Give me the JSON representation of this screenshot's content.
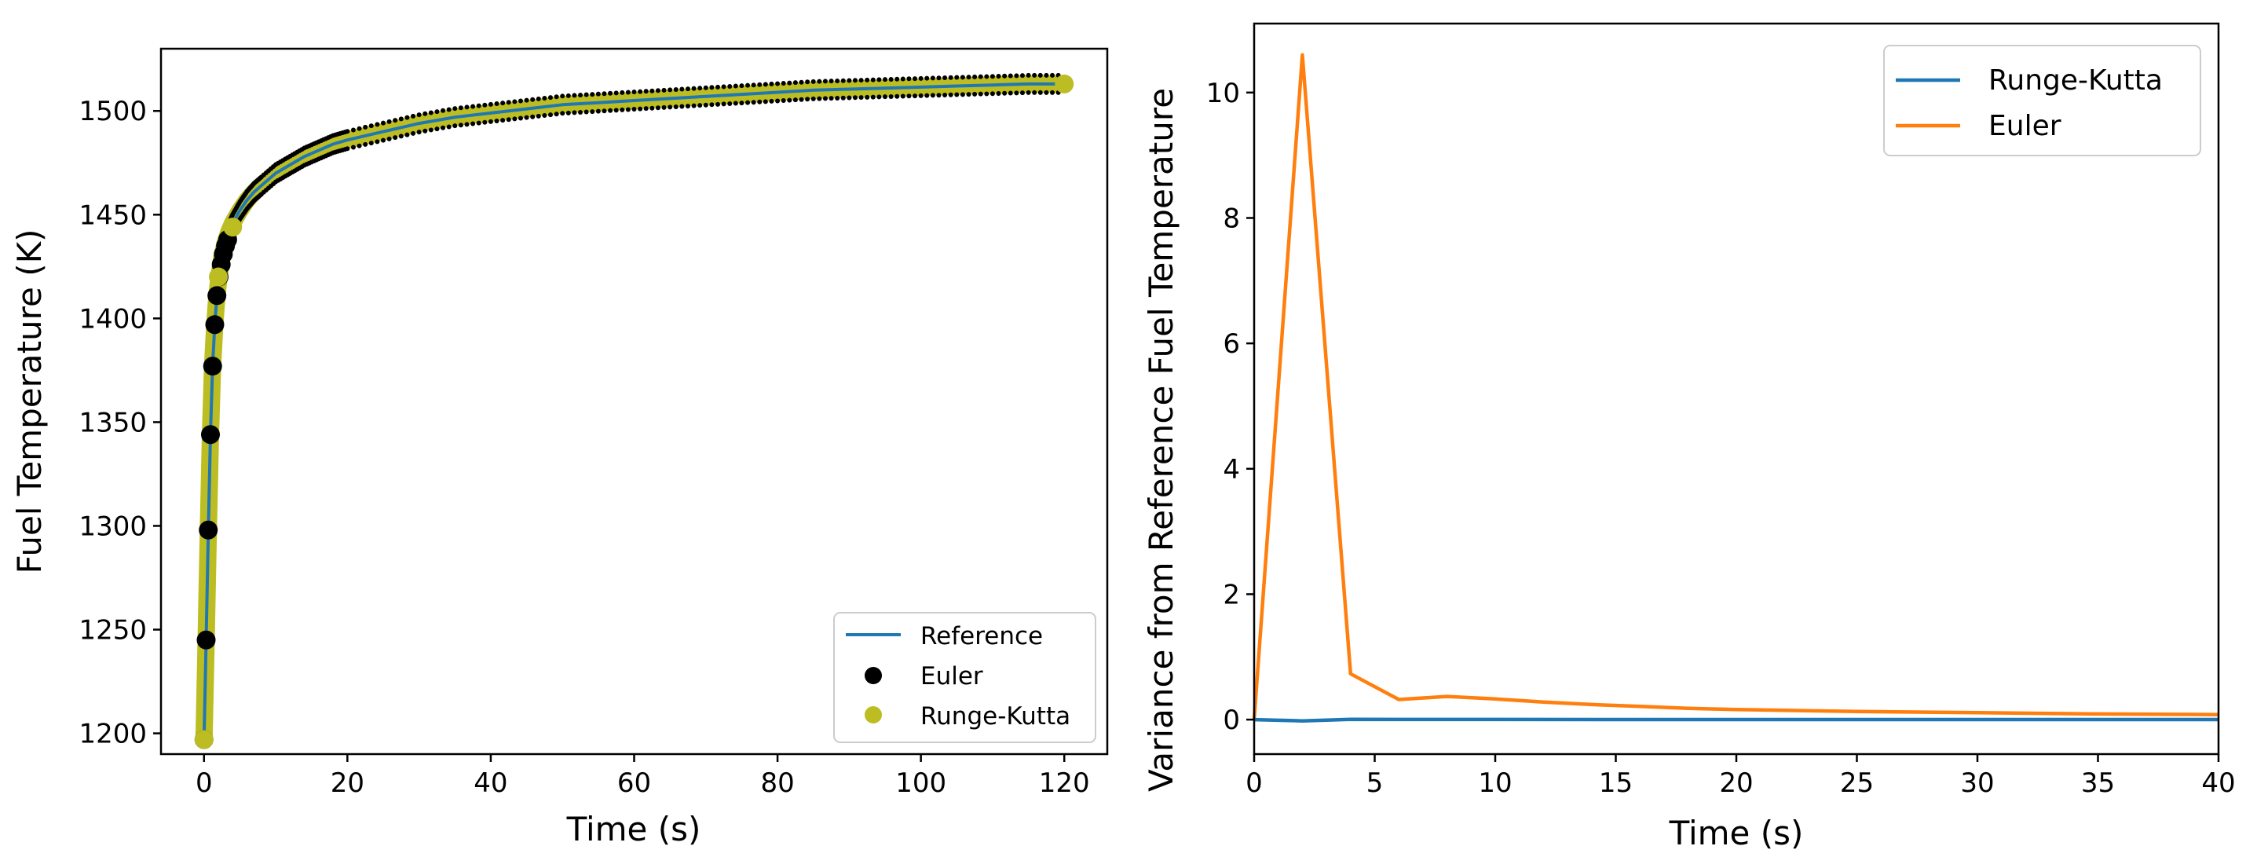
{
  "chart_data": [
    {
      "type": "line",
      "xlabel": "Time (s)",
      "ylabel": "Fuel Temperature (K)",
      "xlim": [
        -6,
        126
      ],
      "ylim": [
        1190,
        1530
      ],
      "xticks": [
        0,
        20,
        40,
        60,
        80,
        100,
        120
      ],
      "yticks": [
        1200,
        1250,
        1300,
        1350,
        1400,
        1450,
        1500
      ],
      "legend_position": "lower-right",
      "colors": {
        "reference": "#1f77b4",
        "euler": "#000000",
        "runge_kutta": "#bcbd22"
      },
      "reference_curve": {
        "name": "Reference",
        "x": [
          0,
          0.3,
          0.6,
          0.9,
          1.2,
          1.5,
          1.8,
          2.1,
          2.5,
          3,
          3.5,
          4,
          5,
          6,
          7,
          8,
          10,
          12,
          14,
          16,
          18,
          20,
          25,
          30,
          35,
          40,
          45,
          50,
          55,
          60,
          65,
          70,
          75,
          80,
          85,
          90,
          95,
          100,
          105,
          110,
          115,
          120
        ],
        "y": [
          1197,
          1245,
          1298,
          1344,
          1377,
          1397,
          1411,
          1420,
          1430,
          1437,
          1442,
          1446,
          1452,
          1457,
          1461,
          1464,
          1470,
          1474,
          1478,
          1481,
          1484,
          1486,
          1490,
          1494,
          1497,
          1499,
          1501,
          1503,
          1504,
          1505,
          1506,
          1507,
          1508,
          1509,
          1510,
          1510.5,
          1511,
          1511.5,
          1512,
          1512.5,
          1513,
          1513
        ]
      },
      "euler_points": {
        "name": "Euler",
        "x": [
          0,
          0.3,
          0.6,
          0.9,
          1.2,
          1.5,
          1.8,
          2.1,
          2.4,
          2.7,
          3.0,
          3.3
        ],
        "y": [
          1197,
          1245,
          1298,
          1344,
          1377,
          1397,
          1411,
          1420,
          1426,
          1431,
          1435,
          1438
        ]
      },
      "runge_kutta_points": {
        "name": "Runge-Kutta",
        "x": [
          0,
          2,
          4,
          6,
          8,
          10,
          15,
          20,
          25,
          30,
          35,
          40,
          45,
          50,
          55,
          60,
          65,
          70,
          75,
          80,
          85,
          90,
          95,
          100,
          105,
          110,
          115,
          120
        ],
        "y": [
          1197,
          1420,
          1444,
          1455,
          1463,
          1469,
          1480,
          1486,
          1490,
          1494,
          1497,
          1499,
          1501,
          1503,
          1504,
          1505,
          1506,
          1507,
          1508,
          1509,
          1510,
          1510.5,
          1511,
          1511.5,
          1512,
          1512.5,
          1513,
          1513
        ]
      },
      "legend": [
        "Reference",
        "Euler",
        "Runge-Kutta"
      ]
    },
    {
      "type": "line",
      "xlabel": "Time (s)",
      "ylabel": "Variance from Reference Fuel Temperature",
      "xlim": [
        0,
        40
      ],
      "ylim": [
        -0.55,
        11.1
      ],
      "xticks": [
        0,
        5,
        10,
        15,
        20,
        25,
        30,
        35,
        40
      ],
      "yticks": [
        0,
        2,
        4,
        6,
        8,
        10
      ],
      "legend_position": "upper-right",
      "series": [
        {
          "name": "Runge-Kutta",
          "color": "#1f77b4",
          "x": [
            0,
            2,
            4,
            6,
            8,
            10,
            15,
            20,
            25,
            30,
            35,
            40
          ],
          "y": [
            0,
            -0.02,
            0.005,
            0.003,
            0.002,
            0.002,
            0.001,
            0.001,
            0.001,
            0.001,
            0.001,
            0.001
          ]
        },
        {
          "name": "Euler",
          "color": "#ff7f0e",
          "x": [
            0,
            2,
            4,
            6,
            8,
            10,
            12,
            14,
            16,
            18,
            20,
            25,
            30,
            35,
            40
          ],
          "y": [
            0,
            10.6,
            0.73,
            0.32,
            0.37,
            0.33,
            0.28,
            0.24,
            0.21,
            0.18,
            0.16,
            0.13,
            0.11,
            0.09,
            0.08
          ]
        }
      ],
      "legend": [
        "Runge-Kutta",
        "Euler"
      ]
    }
  ]
}
